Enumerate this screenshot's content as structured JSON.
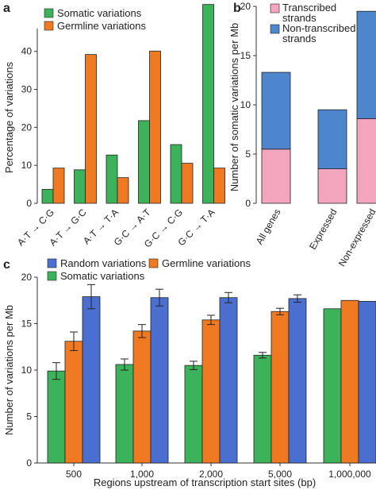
{
  "colors": {
    "green": "#3cb35a",
    "orange": "#f07a22",
    "blue": "#4a6fd0",
    "pink": "#f4a6bf",
    "stack_blue": "#4d86cc"
  },
  "chart_data": [
    {
      "panel": "a",
      "type": "bar",
      "categories": [
        "A·T → C·G",
        "A·T → G·C",
        "A·T → T·A",
        "G·C → A·T",
        "G·C → C·G",
        "G·C → T·A"
      ],
      "series": [
        {
          "name": "Somatic variations",
          "values": [
            3.2,
            7.7,
            11.1,
            19.0,
            13.5,
            45.7
          ]
        },
        {
          "name": "Germline variations",
          "values": [
            8.1,
            34.2,
            5.9,
            35.0,
            9.2,
            8.1
          ]
        }
      ],
      "ylabel": "Percentage of variations",
      "ylim": [
        0,
        46
      ],
      "yticks": [
        "0",
        "10",
        "20",
        "30",
        "40"
      ],
      "legend": "top-left"
    },
    {
      "panel": "b",
      "type": "bar",
      "stacked": true,
      "categories": [
        "All genes",
        "Expressed",
        "Non-expressed"
      ],
      "series": [
        {
          "name": "Transcribed strands",
          "values": [
            5.5,
            3.5,
            8.6
          ]
        },
        {
          "name": "Non-transcribed strands",
          "values": [
            7.8,
            6.0,
            10.9
          ]
        }
      ],
      "ylabel": "Number of somatic variations per Mb",
      "ylim": [
        0,
        20
      ],
      "yticks": [
        "0",
        "5",
        "10",
        "15",
        "20"
      ],
      "legend": "top-right"
    },
    {
      "panel": "c",
      "type": "bar",
      "categories": [
        "500",
        "1,000",
        "2,000",
        "5,000",
        "1,000,000"
      ],
      "series": [
        {
          "name": "Somatic variations",
          "values": [
            9.9,
            10.6,
            10.5,
            11.6,
            16.6
          ],
          "errors": [
            0.9,
            0.6,
            0.45,
            0.3,
            0.0
          ]
        },
        {
          "name": "Germline variations",
          "values": [
            13.1,
            14.2,
            15.4,
            16.3,
            17.5
          ],
          "errors": [
            1.0,
            0.7,
            0.5,
            0.35,
            0.0
          ]
        },
        {
          "name": "Random variations",
          "values": [
            17.9,
            17.8,
            17.8,
            17.7,
            17.4
          ],
          "errors": [
            1.3,
            0.9,
            0.55,
            0.4,
            0.0
          ]
        }
      ],
      "xlabel": "Regions upstream of transcription start sites (bp)",
      "ylabel": "Number of variations per Mb",
      "ylim": [
        0,
        20
      ],
      "yticks": [
        "0",
        "5",
        "10",
        "15",
        "20"
      ],
      "legend": "top-left"
    }
  ],
  "labels": {
    "panel_a": "a",
    "panel_b": "b",
    "panel_c": "c"
  }
}
